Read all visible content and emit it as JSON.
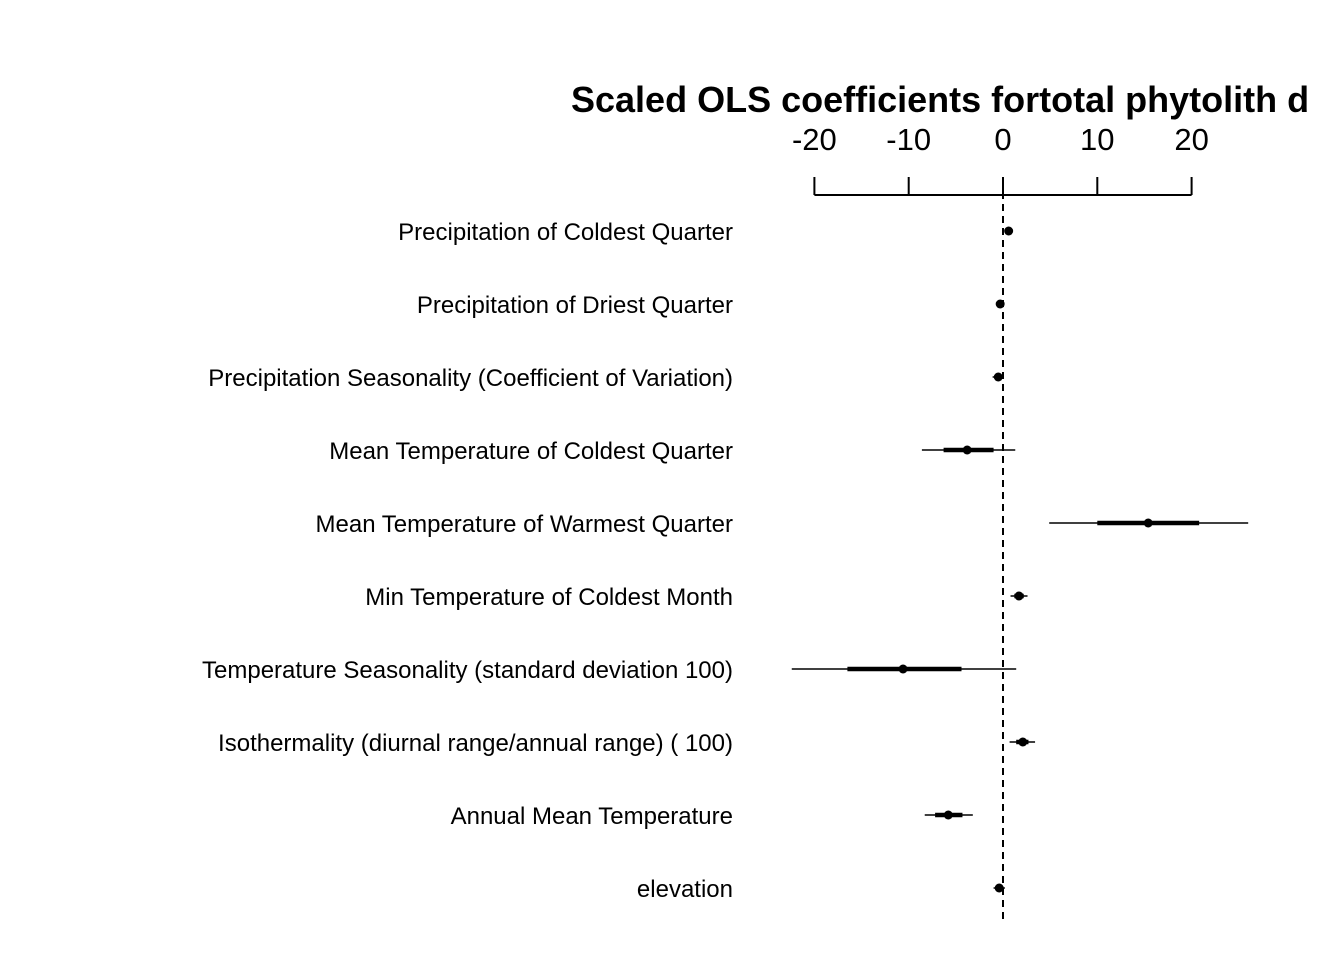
{
  "chart_data": {
    "type": "coefficient-plot",
    "title": "Scaled OLS coefficients fortotal phytolith d",
    "xlabel": "",
    "ylabel": "",
    "xlim": [
      -22.5,
      26
    ],
    "axis_position": "top",
    "x_ticks": [
      -20,
      -10,
      0,
      10,
      20
    ],
    "x_tick_labels": [
      "-20",
      "-10",
      "0",
      "10",
      "20"
    ],
    "reference_line": 0,
    "grid": false,
    "rows": [
      {
        "label": "Precipitation of Coldest Quarter",
        "estimate": 0.6,
        "ci_inner": [
          0.4,
          0.8
        ],
        "ci_outer": [
          0.2,
          1.0
        ]
      },
      {
        "label": "Precipitation of Driest Quarter",
        "estimate": -0.3,
        "ci_inner": [
          -0.5,
          -0.1
        ],
        "ci_outer": [
          -0.7,
          0.1
        ]
      },
      {
        "label": "Precipitation Seasonality (Coefficient of Variation)",
        "estimate": -0.5,
        "ci_inner": [
          -0.8,
          -0.2
        ],
        "ci_outer": [
          -1.1,
          0.1
        ]
      },
      {
        "label": "Mean Temperature of Coldest Quarter",
        "estimate": -3.8,
        "ci_inner": [
          -6.3,
          -1.0
        ],
        "ci_outer": [
          -8.6,
          1.3
        ]
      },
      {
        "label": "Mean Temperature of Warmest Quarter",
        "estimate": 15.4,
        "ci_inner": [
          10.0,
          20.8
        ],
        "ci_outer": [
          4.9,
          26.0
        ]
      },
      {
        "label": "Min Temperature of Coldest Month",
        "estimate": 1.7,
        "ci_inner": [
          1.2,
          2.2
        ],
        "ci_outer": [
          0.8,
          2.6
        ]
      },
      {
        "label": "Temperature Seasonality (standard deviation  100)",
        "estimate": -10.6,
        "ci_inner": [
          -16.5,
          -4.4
        ],
        "ci_outer": [
          -22.4,
          1.4
        ]
      },
      {
        "label": "Isothermality (diurnal range/annual range) (  100)",
        "estimate": 2.1,
        "ci_inner": [
          1.4,
          2.7
        ],
        "ci_outer": [
          0.7,
          3.4
        ]
      },
      {
        "label": "Annual Mean Temperature",
        "estimate": -5.8,
        "ci_inner": [
          -7.2,
          -4.3
        ],
        "ci_outer": [
          -8.3,
          -3.2
        ]
      },
      {
        "label": "elevation",
        "estimate": -0.4,
        "ci_inner": [
          -0.7,
          -0.1
        ],
        "ci_outer": [
          -1.0,
          0.2
        ]
      }
    ]
  }
}
